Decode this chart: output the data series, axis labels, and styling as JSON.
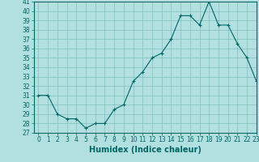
{
  "x": [
    0,
    1,
    2,
    3,
    4,
    5,
    6,
    7,
    8,
    9,
    10,
    11,
    12,
    13,
    14,
    15,
    16,
    17,
    18,
    19,
    20,
    21,
    22,
    23
  ],
  "y": [
    31,
    31,
    29,
    28.5,
    28.5,
    27.5,
    28,
    28,
    29.5,
    30,
    32.5,
    33.5,
    35,
    35.5,
    37,
    39.5,
    39.5,
    38.5,
    41,
    38.5,
    38.5,
    36.5,
    35,
    32.5
  ],
  "line_color": "#006666",
  "marker_color": "#006666",
  "bg_color": "#b2dfdf",
  "grid_color": "#80bfbf",
  "xlabel": "Humidex (Indice chaleur)",
  "ylim": [
    27,
    41
  ],
  "xlim": [
    -0.5,
    23
  ],
  "yticks": [
    27,
    28,
    29,
    30,
    31,
    32,
    33,
    34,
    35,
    36,
    37,
    38,
    39,
    40,
    41
  ],
  "xticks": [
    0,
    1,
    2,
    3,
    4,
    5,
    6,
    7,
    8,
    9,
    10,
    11,
    12,
    13,
    14,
    15,
    16,
    17,
    18,
    19,
    20,
    21,
    22,
    23
  ],
  "tick_fontsize": 5.5,
  "xlabel_fontsize": 7.0
}
